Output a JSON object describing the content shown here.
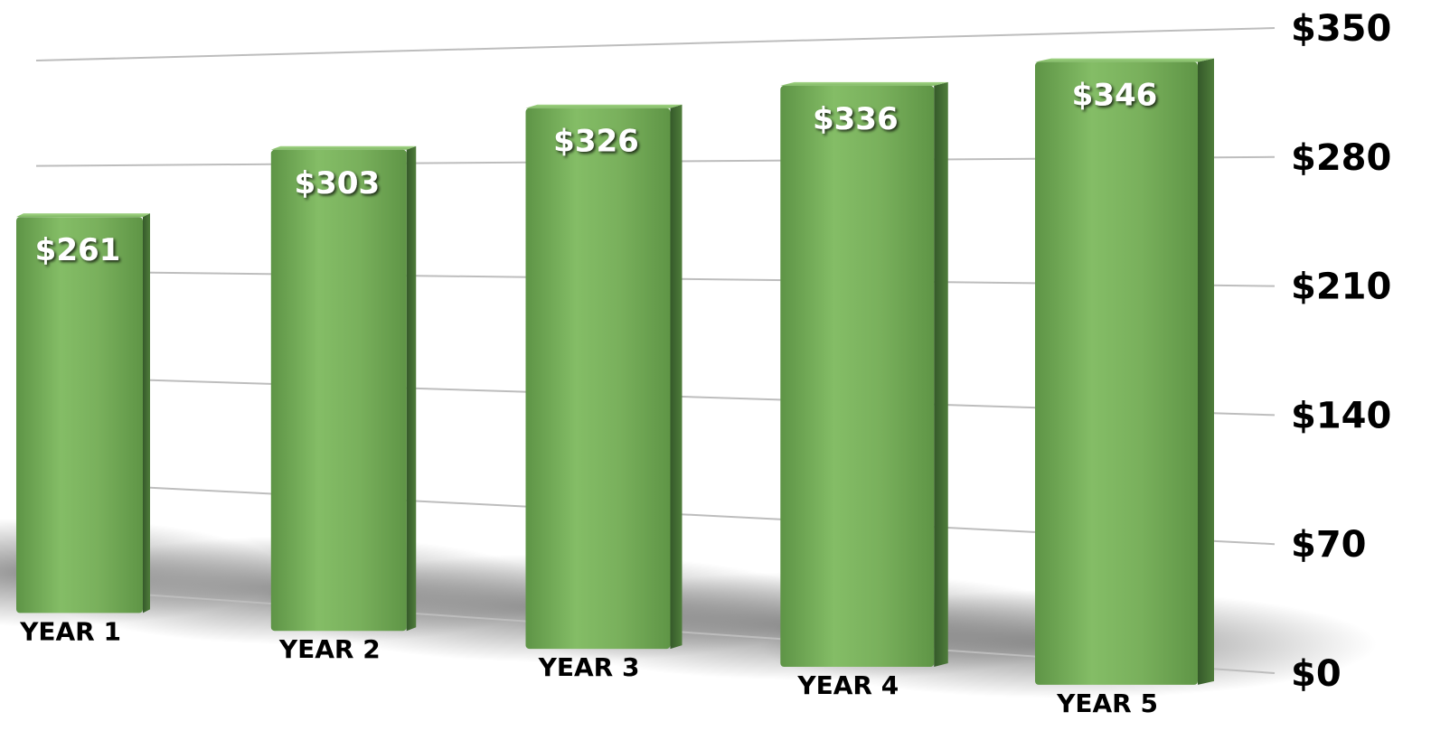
{
  "chart_data": {
    "type": "bar",
    "categories": [
      "YEAR 1",
      "YEAR 2",
      "YEAR 3",
      "YEAR 4",
      "YEAR 5"
    ],
    "values": [
      261,
      303,
      326,
      336,
      346
    ],
    "value_labels": [
      "$261",
      "$303",
      "$326",
      "$336",
      "$346"
    ],
    "y_ticks": [
      0,
      70,
      140,
      210,
      280,
      350
    ],
    "y_tick_labels": [
      "$0",
      "$70",
      "$140",
      "$210",
      "$280",
      "$350"
    ],
    "ylim": [
      0,
      350
    ],
    "y_axis_position": "right",
    "grid": true,
    "legend": "none",
    "style": "3d-perspective",
    "colors": {
      "bar_light": "#8cc56f",
      "bar_mid": "#6fa552",
      "bar_dark": "#3f6a2c",
      "grid": "#bdbdbd",
      "value_label": "#ffffff",
      "axis_label": "#000000"
    }
  }
}
